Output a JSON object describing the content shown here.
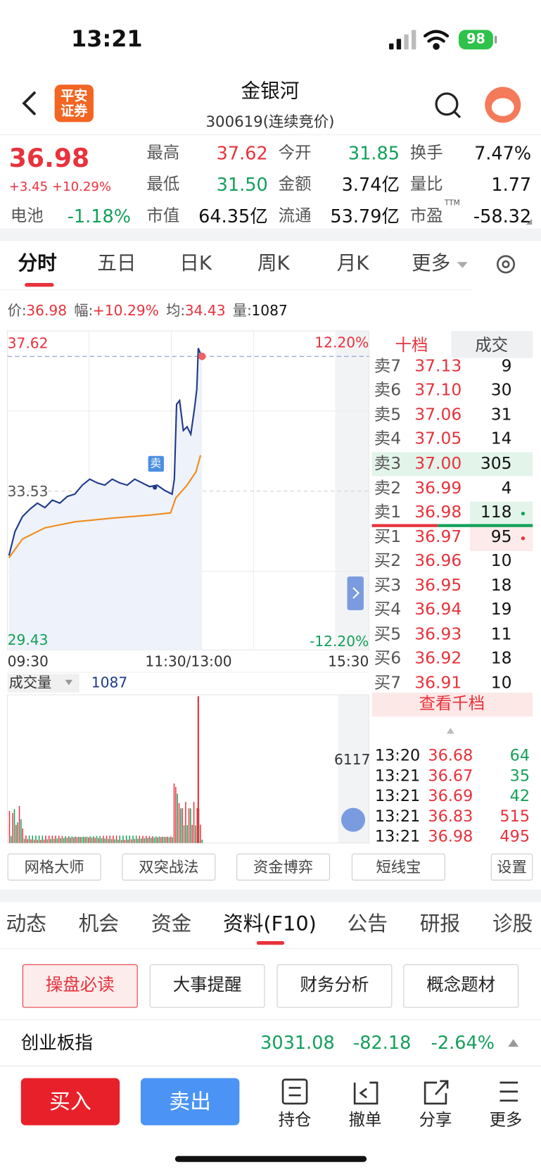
{
  "status": {
    "time": "13:21",
    "battery": "98"
  },
  "header": {
    "logo": [
      "平安",
      "证券"
    ],
    "title": "金银河",
    "subtitle": "300619(连续竞价)"
  },
  "quote": {
    "price": "36.98",
    "change": "+3.45 +10.29%",
    "extra": {
      "label": "电池",
      "value": "-1.18%"
    },
    "stats": [
      {
        "label": "最高",
        "value": "37.62"
      },
      {
        "label": "今开",
        "value": "31.85"
      },
      {
        "label": "换手",
        "value": "7.47%"
      },
      {
        "label": "最低",
        "value": "31.50"
      },
      {
        "label": "金额",
        "value": "3.74亿"
      },
      {
        "label": "量比",
        "value": "1.77"
      },
      {
        "label": "市值",
        "value": "64.35亿"
      },
      {
        "label": "流通",
        "value": "53.79亿"
      },
      {
        "label": "市盈",
        "value": "-58.32"
      }
    ],
    "ttm": "TTM"
  },
  "tabs": [
    "分时",
    "五日",
    "日K",
    "周K",
    "月K",
    "更多"
  ],
  "info": [
    {
      "label": "价:",
      "value": "36.98"
    },
    {
      "label": "幅:",
      "value": "+10.29%"
    },
    {
      "label": "均:",
      "value": "34.43"
    },
    {
      "label": "量:",
      "value": "1087"
    }
  ],
  "chart": {
    "high": "37.62",
    "high_pct": "12.20%",
    "mid": "33.53",
    "low": "29.43",
    "low_pct": "-12.20%",
    "times": [
      "09:30",
      "11:30/13:00",
      "15:30"
    ],
    "marker": "卖"
  },
  "volume": {
    "label": "成交量",
    "value": "1087",
    "max": "6117"
  },
  "order_book": {
    "tabs": [
      "十档",
      "成交"
    ],
    "asks": [
      {
        "label": "卖7",
        "price": "37.13",
        "volume": "9"
      },
      {
        "label": "卖6",
        "price": "37.10",
        "volume": "30"
      },
      {
        "label": "卖5",
        "price": "37.06",
        "volume": "31"
      },
      {
        "label": "卖4",
        "price": "37.05",
        "volume": "14"
      },
      {
        "label": "卖3",
        "price": "37.00",
        "volume": "305"
      },
      {
        "label": "卖2",
        "price": "36.99",
        "volume": "4"
      },
      {
        "label": "卖1",
        "price": "36.98",
        "volume": "118"
      }
    ],
    "bids": [
      {
        "label": "买1",
        "price": "36.97",
        "volume": "95"
      },
      {
        "label": "买2",
        "price": "36.96",
        "volume": "10"
      },
      {
        "label": "买3",
        "price": "36.95",
        "volume": "18"
      },
      {
        "label": "买4",
        "price": "36.94",
        "volume": "19"
      },
      {
        "label": "买5",
        "price": "36.93",
        "volume": "11"
      },
      {
        "label": "买6",
        "price": "36.92",
        "volume": "18"
      },
      {
        "label": "买7",
        "price": "36.91",
        "volume": "10"
      }
    ],
    "more": "查看千档"
  },
  "trades": [
    {
      "time": "13:20",
      "price": "36.68",
      "volume": "64"
    },
    {
      "time": "13:21",
      "price": "36.67",
      "volume": "35"
    },
    {
      "time": "13:21",
      "price": "36.69",
      "volume": "42"
    },
    {
      "time": "13:21",
      "price": "36.83",
      "volume": "515"
    },
    {
      "time": "13:21",
      "price": "36.98",
      "volume": "495"
    }
  ],
  "tools": [
    "网格大师",
    "双突战法",
    "资金博弈",
    "短线宝",
    "设置"
  ],
  "sections": [
    "动态",
    "机会",
    "资金",
    "资料(F10)",
    "公告",
    "研报",
    "诊股"
  ],
  "buttons": [
    "操盘必读",
    "大事提醒",
    "财务分析",
    "概念题材"
  ],
  "index": {
    "name": "创业板指",
    "value": "3031.08",
    "change": "-82.18",
    "pct": "-2.64%"
  },
  "actions": {
    "buy": "买入",
    "sell": "卖出",
    "items": [
      "持仓",
      "撤单",
      "分享",
      "更多"
    ]
  }
}
